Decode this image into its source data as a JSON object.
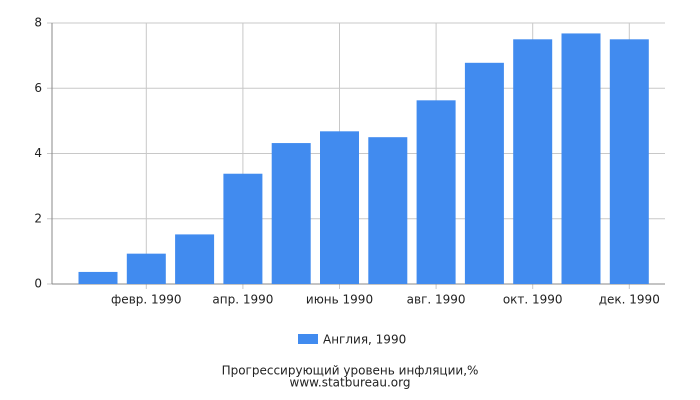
{
  "chart_data": {
    "type": "bar",
    "title": "Прогрессирующий уровень инфляции,%",
    "subtitle": "www.statbureau.org",
    "categories": [
      null,
      "февр. 1990",
      null,
      "апр. 1990",
      null,
      "июнь 1990",
      null,
      "авг. 1990",
      null,
      "окт. 1990",
      null,
      "дек. 1990"
    ],
    "series": [
      {
        "name": "Англия, 1990",
        "color": "#418bef",
        "values": [
          0.37,
          0.93,
          1.52,
          3.38,
          4.32,
          4.68,
          4.5,
          5.63,
          6.78,
          7.5,
          7.68,
          7.5
        ]
      }
    ],
    "ylim": [
      0,
      8
    ],
    "yticks": [
      0,
      2,
      4,
      6,
      8
    ],
    "grid": true
  }
}
